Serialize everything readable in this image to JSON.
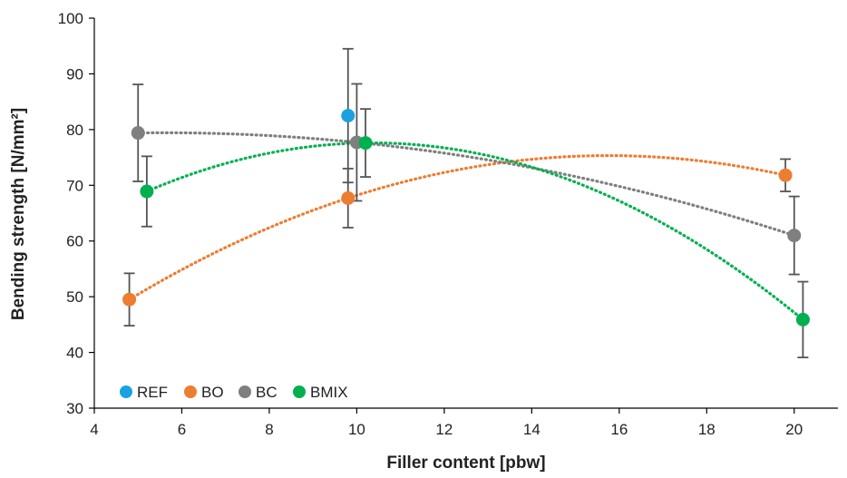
{
  "chart_data": {
    "type": "scatter",
    "title": "",
    "xlabel": "Filler content [pbw]",
    "ylabel": "Bending strength [N/mm²]",
    "xlim": [
      4,
      21
    ],
    "ylim": [
      30,
      100
    ],
    "x_ticks": [
      4,
      6,
      8,
      10,
      12,
      14,
      16,
      18,
      20
    ],
    "y_ticks": [
      30,
      40,
      50,
      60,
      70,
      80,
      90,
      100
    ],
    "grid": false,
    "legend_position": "bottom-left",
    "series": [
      {
        "name": "REF",
        "color": "#1BA1E2",
        "points": [
          {
            "x": 9.8,
            "y": 82.5,
            "err_low": 12.0,
            "err_high": 12.0
          }
        ],
        "trendline": null
      },
      {
        "name": "BO",
        "color": "#ED7D31",
        "points": [
          {
            "x": 4.8,
            "y": 49.5,
            "err_low": 4.7,
            "err_high": 4.7
          },
          {
            "x": 9.8,
            "y": 67.7,
            "err_low": 5.3,
            "err_high": 5.3
          },
          {
            "x": 19.8,
            "y": 71.8,
            "err_low": 2.9,
            "err_high": 2.9
          }
        ],
        "trendline": "polynomial-2"
      },
      {
        "name": "BC",
        "color": "#7F7F7F",
        "points": [
          {
            "x": 5.0,
            "y": 79.4,
            "err_low": 8.7,
            "err_high": 8.7
          },
          {
            "x": 10.0,
            "y": 77.7,
            "err_low": 10.5,
            "err_high": 10.5
          },
          {
            "x": 20.0,
            "y": 61.0,
            "err_low": 7.0,
            "err_high": 7.0
          }
        ],
        "trendline": "polynomial-2"
      },
      {
        "name": "BMIX",
        "color": "#00B050",
        "points": [
          {
            "x": 5.2,
            "y": 68.9,
            "err_low": 6.3,
            "err_high": 6.3
          },
          {
            "x": 10.2,
            "y": 77.6,
            "err_low": 6.1,
            "err_high": 6.1
          },
          {
            "x": 20.2,
            "y": 45.9,
            "err_low": 6.8,
            "err_high": 6.8
          }
        ],
        "trendline": "polynomial-2"
      }
    ]
  }
}
